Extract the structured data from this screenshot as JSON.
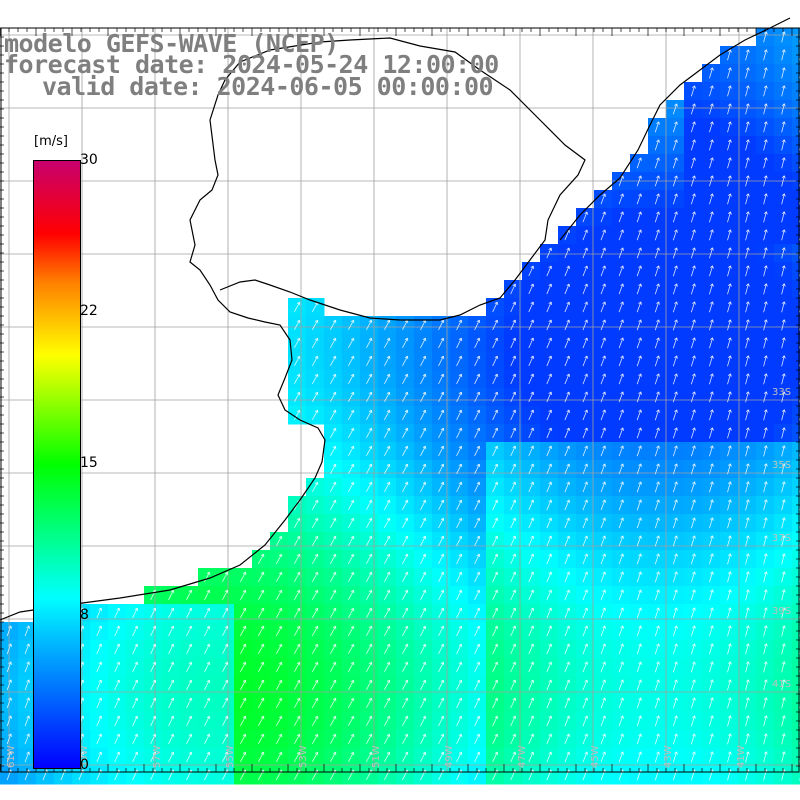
{
  "title": {
    "line1": "modelo GEFS-WAVE (NCEP)",
    "line2": "forecast date: 2024-05-24 12:00:00",
    "line3": "valid date: 2024-06-05 00:00:00"
  },
  "colorbar": {
    "unit": "[m/s]",
    "ticks": [
      "30",
      "22",
      "15",
      "8",
      "0"
    ],
    "colors": [
      "#0000ff",
      "#00a0ff",
      "#00ffff",
      "#00ff00",
      "#ffff00",
      "#ff8000",
      "#ff0000",
      "#c8006e"
    ]
  },
  "map": {
    "land_color": "#ffffff",
    "grid_color": "#a0a0a0",
    "lon_labels": [
      "61W",
      "59W",
      "57W",
      "55W",
      "53W",
      "51W",
      "49W",
      "47W",
      "45W",
      "43W",
      "41W"
    ],
    "lat_labels": [
      "33S",
      "35S",
      "37S",
      "39S",
      "41S"
    ]
  }
}
